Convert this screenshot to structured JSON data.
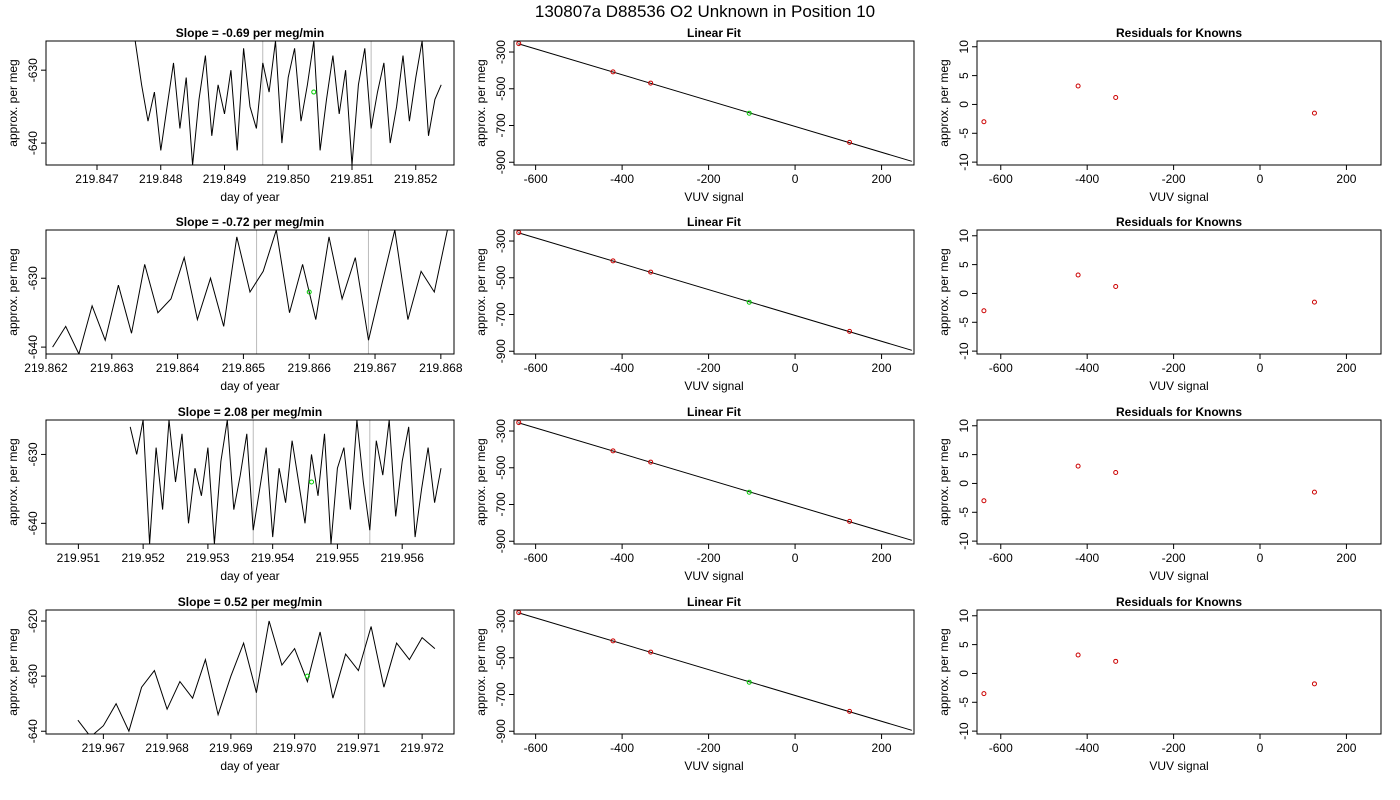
{
  "figure": {
    "title": "130807a      D88536    O2 Unknown in Position  10"
  },
  "colors": {
    "trace": "#000000",
    "marker_known": "#cc0000",
    "marker_unknown": "#00cc00",
    "guide_line": "#bbbbbb",
    "frame": "#000000"
  },
  "chart_data": [
    {
      "type": "line",
      "title": "Slope =  -0.69  per meg/min",
      "xlabel": "day of year",
      "ylabel": "approx. per meg",
      "xticks": [
        "219.847",
        "219.848",
        "219.849",
        "219.850",
        "219.851",
        "219.852"
      ],
      "yticks": [
        "-640",
        "-630"
      ],
      "xlim": [
        219.8462,
        219.8526
      ],
      "ylim": [
        -643,
        -626
      ],
      "guides_x": [
        219.8496,
        219.8513
      ],
      "unknown_point": {
        "x": 219.8504,
        "y": -633
      },
      "series": [
        {
          "x": [
            219.8476,
            219.8477,
            219.8478,
            219.8479,
            219.848,
            219.8481,
            219.8482,
            219.8483,
            219.8484,
            219.8485,
            219.8486,
            219.8487,
            219.8488,
            219.8489,
            219.849,
            219.8491,
            219.8492,
            219.8493,
            219.8494,
            219.8495,
            219.8496,
            219.8497,
            219.8498,
            219.8499,
            219.85,
            219.8501,
            219.8502,
            219.8503,
            219.8504,
            219.8505,
            219.8506,
            219.8507,
            219.8508,
            219.8509,
            219.851,
            219.8511,
            219.8512,
            219.8513,
            219.8514,
            219.8515,
            219.8516,
            219.8517,
            219.8518,
            219.8519,
            219.852,
            219.8521,
            219.8522,
            219.8523,
            219.8524
          ],
          "y": [
            -626,
            -632,
            -637,
            -633,
            -641,
            -635,
            -629,
            -638,
            -631,
            -643,
            -634,
            -628,
            -639,
            -632,
            -636,
            -630,
            -641,
            -627,
            -635,
            -638,
            -629,
            -633,
            -626,
            -640,
            -631,
            -627,
            -637,
            -632,
            -626,
            -641,
            -634,
            -628,
            -636,
            -630,
            -643,
            -632,
            -627,
            -638,
            -633,
            -629,
            -640,
            -635,
            -628,
            -637,
            -631,
            -626,
            -639,
            -634,
            -632
          ]
        }
      ]
    },
    {
      "type": "scatter",
      "title": "Linear Fit",
      "xlabel": "VUV signal",
      "ylabel": "approx. per meg",
      "xticks": [
        "-600",
        "-400",
        "-200",
        "0",
        "200"
      ],
      "yticks": [
        "-900",
        "-700",
        "-500",
        "-300"
      ],
      "xlim": [
        -650,
        275
      ],
      "ylim": [
        -915,
        -240
      ],
      "fit_line": {
        "x": [
          -640,
          270
        ],
        "y": [
          -255,
          -895
        ]
      },
      "knowns": {
        "x": [
          -639,
          -421,
          -334,
          126
        ],
        "y": [
          -254,
          -408,
          -469,
          -792
        ]
      },
      "unknown": {
        "x": [
          -106
        ],
        "y": [
          -633
        ]
      }
    },
    {
      "type": "scatter",
      "title": "Residuals for Knowns",
      "xlabel": "VUV signal",
      "ylabel": "approx. per meg",
      "xticks": [
        "-600",
        "-400",
        "-200",
        "0",
        "200"
      ],
      "yticks": [
        "-10",
        "-5",
        "0",
        "5",
        "10"
      ],
      "xlim": [
        -655,
        280
      ],
      "ylim": [
        -10.5,
        11
      ],
      "points": {
        "x": [
          -639,
          -421,
          -334,
          126
        ],
        "y": [
          -3,
          3.2,
          1.2,
          -1.5
        ]
      }
    },
    {
      "type": "line",
      "title": "Slope =  -0.72  per meg/min",
      "xlabel": "day of year",
      "ylabel": "approx. per meg",
      "xticks": [
        "219.862",
        "219.863",
        "219.864",
        "219.865",
        "219.866",
        "219.867",
        "219.868"
      ],
      "yticks": [
        "-640",
        "-630"
      ],
      "xlim": [
        219.862,
        219.8682
      ],
      "ylim": [
        -641,
        -623
      ],
      "guides_x": [
        219.8652,
        219.8669
      ],
      "unknown_point": {
        "x": 219.866,
        "y": -632
      },
      "series": [
        {
          "x": [
            219.8621,
            219.8623,
            219.8625,
            219.8627,
            219.8629,
            219.8631,
            219.8633,
            219.8635,
            219.8637,
            219.8639,
            219.8641,
            219.8643,
            219.8645,
            219.8647,
            219.8649,
            219.8651,
            219.8653,
            219.8655,
            219.8657,
            219.8659,
            219.8661,
            219.8663,
            219.8665,
            219.8667,
            219.8669,
            219.8671,
            219.8673,
            219.8675,
            219.8677,
            219.8679,
            219.8681
          ],
          "y": [
            -640,
            -637,
            -641,
            -634,
            -639,
            -631,
            -638,
            -628,
            -635,
            -633,
            -627,
            -636,
            -630,
            -637,
            -624,
            -632,
            -629,
            -623,
            -635,
            -628,
            -636,
            -624,
            -633,
            -627,
            -639,
            -631,
            -623,
            -636,
            -629,
            -632,
            -623
          ]
        }
      ]
    },
    {
      "type": "scatter",
      "title": "Linear Fit",
      "xlabel": "VUV signal",
      "ylabel": "approx. per meg",
      "xticks": [
        "-600",
        "-400",
        "-200",
        "0",
        "200"
      ],
      "yticks": [
        "-900",
        "-700",
        "-500",
        "-300"
      ],
      "xlim": [
        -650,
        275
      ],
      "ylim": [
        -915,
        -240
      ],
      "fit_line": {
        "x": [
          -640,
          270
        ],
        "y": [
          -255,
          -895
        ]
      },
      "knowns": {
        "x": [
          -639,
          -421,
          -334,
          126
        ],
        "y": [
          -254,
          -408,
          -469,
          -792
        ]
      },
      "unknown": {
        "x": [
          -106
        ],
        "y": [
          -633
        ]
      }
    },
    {
      "type": "scatter",
      "title": "Residuals for Knowns",
      "xlabel": "VUV signal",
      "ylabel": "approx. per meg",
      "xticks": [
        "-600",
        "-400",
        "-200",
        "0",
        "200"
      ],
      "yticks": [
        "-10",
        "-5",
        "0",
        "5",
        "10"
      ],
      "xlim": [
        -655,
        280
      ],
      "ylim": [
        -10.5,
        11
      ],
      "points": {
        "x": [
          -639,
          -421,
          -334,
          126
        ],
        "y": [
          -3,
          3.2,
          1.2,
          -1.5
        ]
      }
    },
    {
      "type": "line",
      "title": "Slope =  2.08  per meg/min",
      "xlabel": "day of year",
      "ylabel": "approx. per meg",
      "xticks": [
        "219.951",
        "219.952",
        "219.953",
        "219.954",
        "219.955",
        "219.956"
      ],
      "yticks": [
        "-640",
        "-630"
      ],
      "xlim": [
        219.9505,
        219.9568
      ],
      "ylim": [
        -643,
        -625
      ],
      "guides_x": [
        219.9537,
        219.9555
      ],
      "unknown_point": {
        "x": 219.9546,
        "y": -634
      },
      "series": [
        {
          "x": [
            219.9518,
            219.9519,
            219.952,
            219.9521,
            219.9522,
            219.9523,
            219.9524,
            219.9525,
            219.9526,
            219.9527,
            219.9528,
            219.9529,
            219.953,
            219.9531,
            219.9532,
            219.9533,
            219.9534,
            219.9535,
            219.9536,
            219.9537,
            219.9538,
            219.9539,
            219.954,
            219.9541,
            219.9542,
            219.9543,
            219.9544,
            219.9545,
            219.9546,
            219.9547,
            219.9548,
            219.9549,
            219.955,
            219.9551,
            219.9552,
            219.9553,
            219.9554,
            219.9555,
            219.9556,
            219.9557,
            219.9558,
            219.9559,
            219.956,
            219.9561,
            219.9562,
            219.9563,
            219.9564,
            219.9565,
            219.9566
          ],
          "y": [
            -626,
            -630,
            -625,
            -643,
            -629,
            -638,
            -625,
            -634,
            -627,
            -640,
            -632,
            -636,
            -629,
            -643,
            -631,
            -625,
            -638,
            -633,
            -627,
            -641,
            -635,
            -629,
            -642,
            -632,
            -637,
            -628,
            -634,
            -640,
            -630,
            -636,
            -627,
            -643,
            -632,
            -629,
            -638,
            -625,
            -634,
            -641,
            -628,
            -633,
            -625,
            -639,
            -631,
            -626,
            -642,
            -635,
            -629,
            -637,
            -632
          ]
        }
      ]
    },
    {
      "type": "scatter",
      "title": "Linear Fit",
      "xlabel": "VUV signal",
      "ylabel": "approx. per meg",
      "xticks": [
        "-600",
        "-400",
        "-200",
        "0",
        "200"
      ],
      "yticks": [
        "-900",
        "-700",
        "-500",
        "-300"
      ],
      "xlim": [
        -650,
        275
      ],
      "ylim": [
        -915,
        -240
      ],
      "fit_line": {
        "x": [
          -640,
          270
        ],
        "y": [
          -255,
          -895
        ]
      },
      "knowns": {
        "x": [
          -639,
          -421,
          -334,
          126
        ],
        "y": [
          -254,
          -408,
          -469,
          -792
        ]
      },
      "unknown": {
        "x": [
          -106
        ],
        "y": [
          -633
        ]
      }
    },
    {
      "type": "scatter",
      "title": "Residuals for Knowns",
      "xlabel": "VUV signal",
      "ylabel": "approx. per meg",
      "xticks": [
        "-600",
        "-400",
        "-200",
        "0",
        "200"
      ],
      "yticks": [
        "-10",
        "-5",
        "0",
        "5",
        "10"
      ],
      "xlim": [
        -655,
        280
      ],
      "ylim": [
        -10.5,
        11
      ],
      "points": {
        "x": [
          -639,
          -421,
          -334,
          126
        ],
        "y": [
          -3,
          3.0,
          1.9,
          -1.5
        ]
      }
    },
    {
      "type": "line",
      "title": "Slope =  0.52  per meg/min",
      "xlabel": "day of year",
      "ylabel": "approx. per meg",
      "xticks": [
        "219.967",
        "219.968",
        "219.969",
        "219.970",
        "219.971",
        "219.972"
      ],
      "yticks": [
        "-640",
        "-630",
        "-620"
      ],
      "xlim": [
        219.9661,
        219.9725
      ],
      "ylim": [
        -640.5,
        -618
      ],
      "guides_x": [
        219.9694,
        219.9711
      ],
      "unknown_point": {
        "x": 219.9702,
        "y": -630
      },
      "series": [
        {
          "x": [
            219.9666,
            219.9668,
            219.967,
            219.9672,
            219.9674,
            219.9676,
            219.9678,
            219.968,
            219.9682,
            219.9684,
            219.9686,
            219.9688,
            219.969,
            219.9692,
            219.9694,
            219.9696,
            219.9698,
            219.97,
            219.9702,
            219.9704,
            219.9706,
            219.9708,
            219.971,
            219.9712,
            219.9714,
            219.9716,
            219.9718,
            219.972,
            219.9722
          ],
          "y": [
            -638,
            -641,
            -639,
            -635,
            -640,
            -632,
            -629,
            -636,
            -631,
            -634,
            -627,
            -637,
            -630,
            -624,
            -633,
            -620,
            -628,
            -625,
            -631,
            -622,
            -634,
            -626,
            -629,
            -621,
            -632,
            -624,
            -627,
            -623,
            -625
          ]
        }
      ]
    },
    {
      "type": "scatter",
      "title": "Linear Fit",
      "xlabel": "VUV signal",
      "ylabel": "approx. per meg",
      "xticks": [
        "-600",
        "-400",
        "-200",
        "0",
        "200"
      ],
      "yticks": [
        "-900",
        "-700",
        "-500",
        "-300"
      ],
      "xlim": [
        -650,
        275
      ],
      "ylim": [
        -915,
        -240
      ],
      "fit_line": {
        "x": [
          -640,
          270
        ],
        "y": [
          -255,
          -895
        ]
      },
      "knowns": {
        "x": [
          -639,
          -421,
          -334,
          126
        ],
        "y": [
          -254,
          -408,
          -469,
          -792
        ]
      },
      "unknown": {
        "x": [
          -106
        ],
        "y": [
          -633
        ]
      }
    },
    {
      "type": "scatter",
      "title": "Residuals for Knowns",
      "xlabel": "VUV signal",
      "ylabel": "approx. per meg",
      "xticks": [
        "-600",
        "-400",
        "-200",
        "0",
        "200"
      ],
      "yticks": [
        "-10",
        "-5",
        "0",
        "5",
        "10"
      ],
      "xlim": [
        -655,
        280
      ],
      "ylim": [
        -10.5,
        11
      ],
      "points": {
        "x": [
          -639,
          -421,
          -334,
          126
        ],
        "y": [
          -3.5,
          3.2,
          2.1,
          -1.8
        ]
      }
    }
  ]
}
